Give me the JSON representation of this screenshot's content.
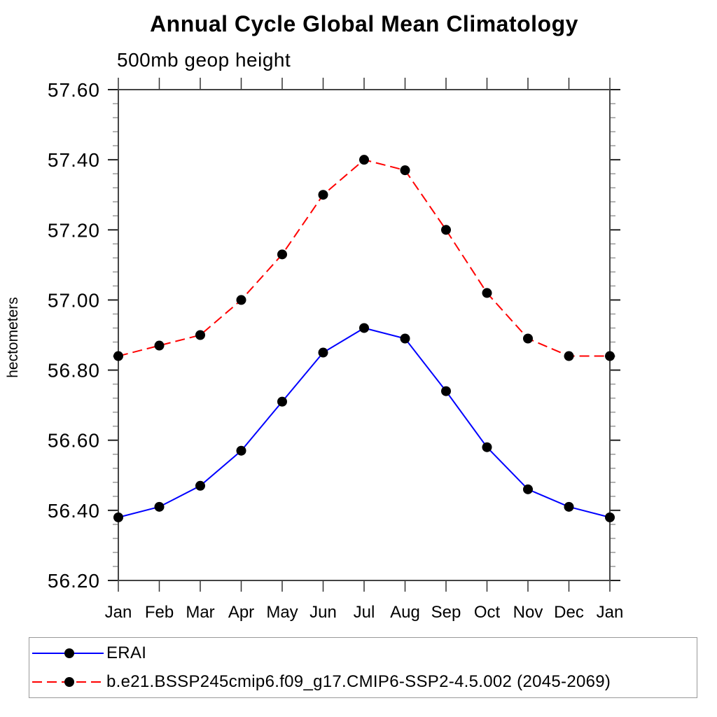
{
  "chart_data": {
    "type": "line",
    "title": "Annual Cycle Global Mean Climatology",
    "subtitle": "500mb geop height",
    "xlabel": "",
    "ylabel": "hectometers",
    "categories": [
      "Jan",
      "Feb",
      "Mar",
      "Apr",
      "May",
      "Jun",
      "Jul",
      "Aug",
      "Sep",
      "Oct",
      "Nov",
      "Dec",
      "Jan"
    ],
    "series": [
      {
        "name": "ERAI",
        "color": "#0000ff",
        "line_style": "solid",
        "marker": "filled-circle",
        "marker_color": "#000000",
        "values": [
          56.38,
          56.41,
          56.47,
          56.57,
          56.71,
          56.85,
          56.92,
          56.89,
          56.74,
          56.58,
          56.46,
          56.41,
          56.38
        ]
      },
      {
        "name": "b.e21.BSSP245cmip6.f09_g17.CMIP6-SSP2-4.5.002 (2045-2069)",
        "color": "#ff0000",
        "line_style": "dashed",
        "marker": "filled-circle",
        "marker_color": "#000000",
        "values": [
          56.84,
          56.87,
          56.9,
          57.0,
          57.13,
          57.3,
          57.4,
          57.37,
          57.2,
          57.02,
          56.89,
          56.84,
          56.84
        ]
      }
    ],
    "ylim": [
      56.2,
      57.6
    ],
    "y_major_step": 0.2,
    "y_minor_step": 0.04,
    "y_tick_labels": [
      "56.20",
      "56.40",
      "56.60",
      "56.80",
      "57.00",
      "57.20",
      "57.40",
      "57.60"
    ],
    "grid": false,
    "legend_position": "bottom",
    "ticks": "outward-all-sides"
  }
}
